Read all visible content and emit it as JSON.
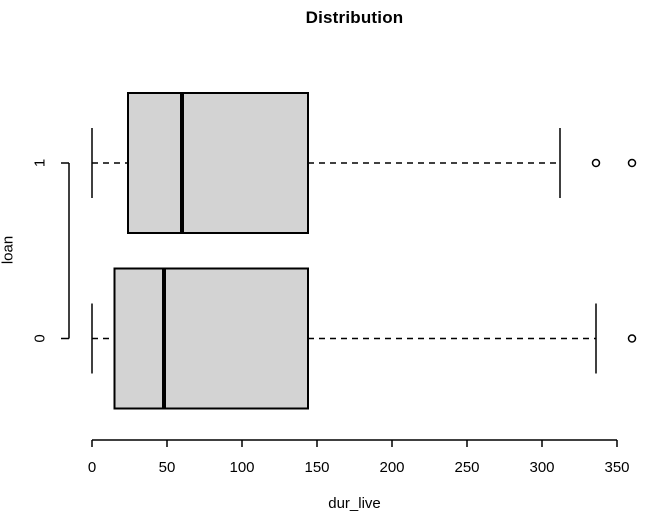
{
  "figure": {
    "background": "#ffffff",
    "text_color": "#000000"
  },
  "chart_data": {
    "type": "boxplot",
    "orientation": "horizontal",
    "title": "Distribution",
    "xlabel": "dur_live",
    "ylabel": "loan",
    "xlim": [
      0,
      350
    ],
    "x_ticks": [
      0,
      50,
      100,
      150,
      200,
      250,
      300,
      350
    ],
    "grid": false,
    "legend": "none",
    "box_fill": "#d3d3d3",
    "line_color": "#000000",
    "groups": [
      {
        "label": "1",
        "whisker_low": 0,
        "q1": 24,
        "median": 60,
        "q3": 144,
        "whisker_high": 312,
        "outliers": [
          336,
          360
        ]
      },
      {
        "label": "0",
        "whisker_low": 0,
        "q1": 15,
        "median": 48,
        "q3": 144,
        "whisker_high": 336,
        "outliers": [
          360
        ]
      }
    ]
  }
}
